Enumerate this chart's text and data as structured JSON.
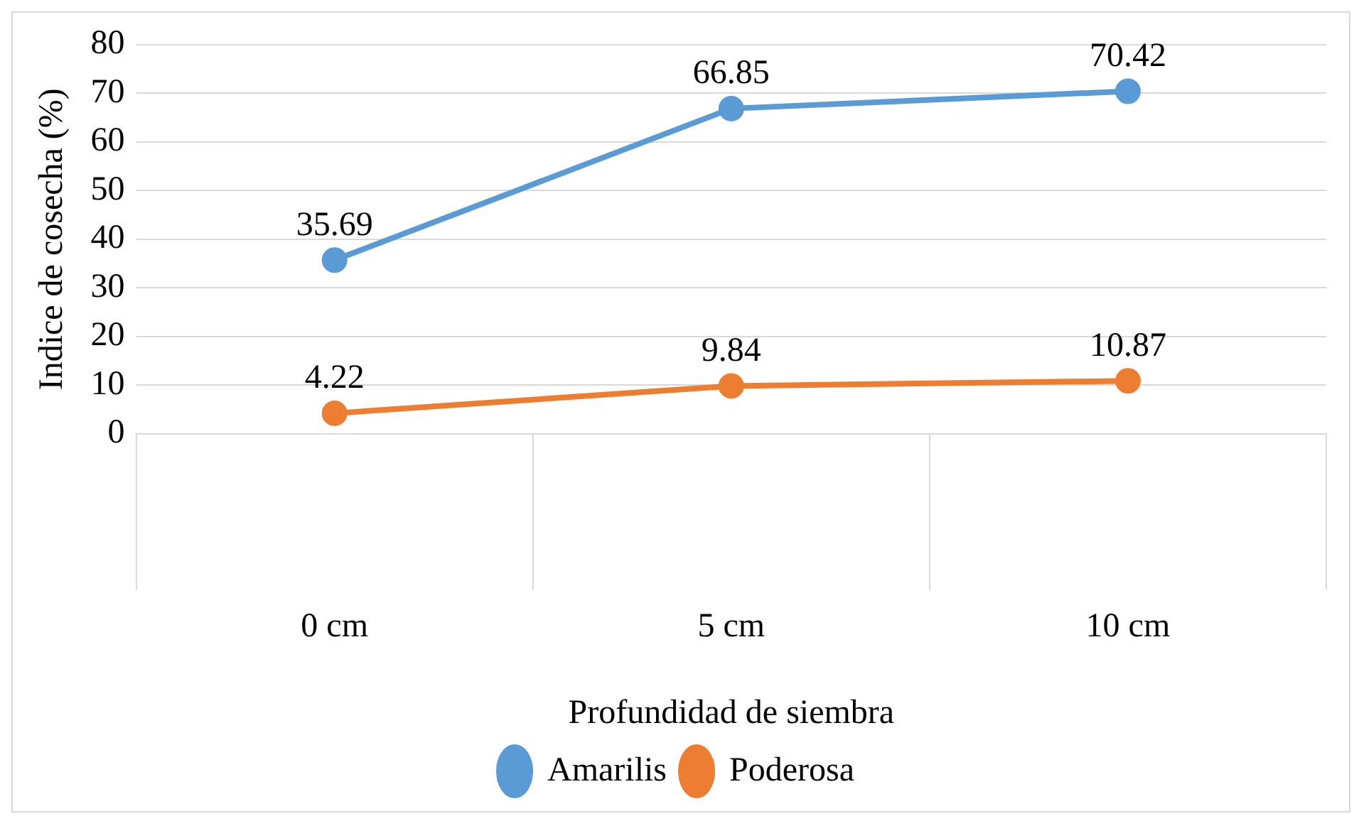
{
  "chart_data": {
    "type": "line",
    "xlabel": "Profundidad de siembra",
    "ylabel": "Indice de cosecha (%)",
    "categories": [
      "0 cm",
      "5 cm",
      "10 cm"
    ],
    "series": [
      {
        "name": "Amarilis",
        "color": "#5b9bd5",
        "values": [
          35.69,
          66.85,
          70.42
        ]
      },
      {
        "name": "Poderosa",
        "color": "#ed7d31",
        "values": [
          4.22,
          9.84,
          10.87
        ]
      }
    ],
    "ylim": [
      0,
      80
    ],
    "yticks": [
      0,
      10,
      20,
      30,
      40,
      50,
      60,
      70,
      80
    ],
    "grid": "y",
    "legend": "bottom",
    "marker": "circle",
    "data_labels": true
  }
}
